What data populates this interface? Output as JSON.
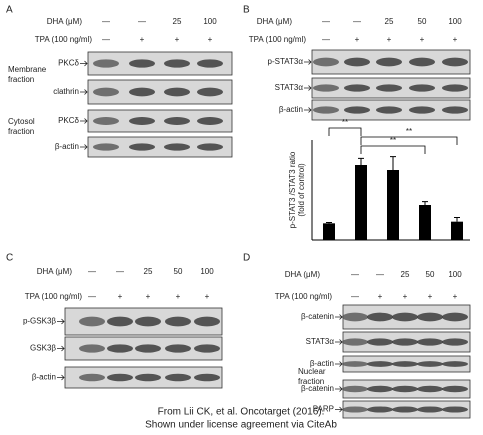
{
  "panels": [
    {
      "label": "A",
      "dha_label": "DHA (μM)",
      "dha": [
        "—",
        "—",
        "25",
        "100"
      ],
      "tpa_label": "TPA (100 ng/ml)",
      "tpa": [
        "—",
        "+",
        "+",
        "+"
      ],
      "blots": [
        "PKCδ",
        "clathrin",
        "PKCδ",
        "β-actin"
      ],
      "fractions": [
        [
          "Membrane",
          "fraction"
        ],
        [
          "Cytosol",
          "fraction"
        ]
      ]
    },
    {
      "label": "B",
      "dha_label": "DHA (μM)",
      "dha": [
        "—",
        "—",
        "25",
        "50",
        "100"
      ],
      "tpa_label": "TPA (100 ng/ml)",
      "tpa": [
        "—",
        "+",
        "+",
        "+",
        "+"
      ],
      "blots": [
        "p-STAT3α",
        "STAT3α",
        "β-actin"
      ],
      "fractions": []
    },
    {
      "label": "C",
      "dha_label": "DHA (μM)",
      "dha": [
        "—",
        "—",
        "25",
        "50",
        "100"
      ],
      "tpa_label": "TPA (100 ng/ml)",
      "tpa": [
        "—",
        "+",
        "+",
        "+",
        "+"
      ],
      "blots": [
        "p-GSK3β",
        "GSK3β",
        "β-actin"
      ],
      "fractions": []
    },
    {
      "label": "D",
      "dha_label": "DHA (μM)",
      "dha": [
        "—",
        "—",
        "25",
        "50",
        "100"
      ],
      "tpa_label": "TPA (100 ng/ml)",
      "tpa": [
        "—",
        "+",
        "+",
        "+",
        "+"
      ],
      "blots": [
        "β-catenin",
        "STAT3α",
        "β-actin",
        "β-catenin",
        "PARP"
      ],
      "fractions": [
        [
          "Nuclear",
          "fraction"
        ]
      ]
    }
  ],
  "chart": {
    "type": "bar",
    "ylabel": "p-STAT3 /STAT3 ratio",
    "ylabel2": "(fold of control)",
    "values": [
      1,
      4.5,
      4.2,
      2.1,
      1.1
    ],
    "errors": [
      0.05,
      0.4,
      0.8,
      0.2,
      0.25
    ],
    "ylim": [
      0,
      6
    ],
    "color": "#000000",
    "annotations": [
      "**",
      "**",
      "**"
    ]
  },
  "footer": [
    "From Lii CK, et al. Oncotarget (2016).",
    "Shown under license agreement via CiteAb"
  ]
}
